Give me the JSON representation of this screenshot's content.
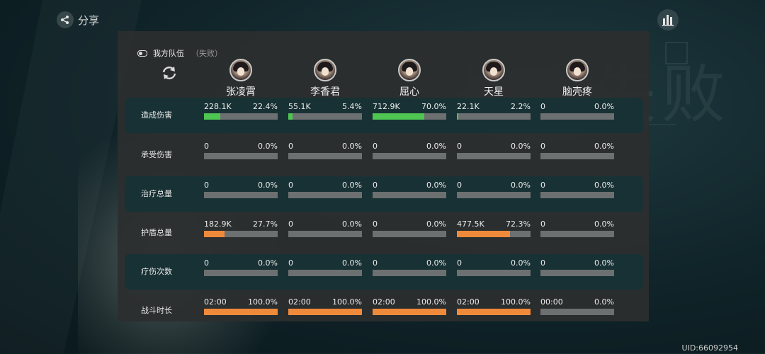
{
  "share": {
    "label": "分享"
  },
  "uid": "UID:66092954",
  "bg_text": "战斗失败",
  "team": {
    "name": "我方队伍",
    "status": "（失败）"
  },
  "members": [
    {
      "name": "张凌霄"
    },
    {
      "name": "李香君"
    },
    {
      "name": "屈心"
    },
    {
      "name": "天星"
    },
    {
      "name": "脑壳疼"
    }
  ],
  "colors": {
    "damage": "#4fc552",
    "orange": "#ef8a3b",
    "bar_bg": "#6d7070",
    "highlight_row": "#183134"
  },
  "rows": [
    {
      "label": "造成伤害",
      "color": "#4fc552",
      "cells": [
        {
          "value": "228.1K",
          "pct": "22.4%",
          "fill": 22.4
        },
        {
          "value": "55.1K",
          "pct": "5.4%",
          "fill": 5.4
        },
        {
          "value": "712.9K",
          "pct": "70.0%",
          "fill": 70.0
        },
        {
          "value": "22.1K",
          "pct": "2.2%",
          "fill": 2.2
        },
        {
          "value": "0",
          "pct": "0.0%",
          "fill": 0
        }
      ]
    },
    {
      "label": "承受伤害",
      "color": "#ef8a3b",
      "cells": [
        {
          "value": "0",
          "pct": "0.0%",
          "fill": 0
        },
        {
          "value": "0",
          "pct": "0.0%",
          "fill": 0
        },
        {
          "value": "0",
          "pct": "0.0%",
          "fill": 0
        },
        {
          "value": "0",
          "pct": "0.0%",
          "fill": 0
        },
        {
          "value": "0",
          "pct": "0.0%",
          "fill": 0
        }
      ]
    },
    {
      "label": "治疗总量",
      "color": "#ef8a3b",
      "cells": [
        {
          "value": "0",
          "pct": "0.0%",
          "fill": 0
        },
        {
          "value": "0",
          "pct": "0.0%",
          "fill": 0
        },
        {
          "value": "0",
          "pct": "0.0%",
          "fill": 0
        },
        {
          "value": "0",
          "pct": "0.0%",
          "fill": 0
        },
        {
          "value": "0",
          "pct": "0.0%",
          "fill": 0
        }
      ]
    },
    {
      "label": "护盾总量",
      "color": "#ef8a3b",
      "cells": [
        {
          "value": "182.9K",
          "pct": "27.7%",
          "fill": 27.7
        },
        {
          "value": "0",
          "pct": "0.0%",
          "fill": 0
        },
        {
          "value": "0",
          "pct": "0.0%",
          "fill": 0
        },
        {
          "value": "477.5K",
          "pct": "72.3%",
          "fill": 72.3
        },
        {
          "value": "0",
          "pct": "0.0%",
          "fill": 0
        }
      ]
    },
    {
      "label": "疗伤次数",
      "color": "#ef8a3b",
      "cells": [
        {
          "value": "0",
          "pct": "0.0%",
          "fill": 0
        },
        {
          "value": "0",
          "pct": "0.0%",
          "fill": 0
        },
        {
          "value": "0",
          "pct": "0.0%",
          "fill": 0
        },
        {
          "value": "0",
          "pct": "0.0%",
          "fill": 0
        },
        {
          "value": "0",
          "pct": "0.0%",
          "fill": 0
        }
      ]
    },
    {
      "label": "战斗时长",
      "color": "#ef8a3b",
      "cells": [
        {
          "value": "02:00",
          "pct": "100.0%",
          "fill": 100
        },
        {
          "value": "02:00",
          "pct": "100.0%",
          "fill": 100
        },
        {
          "value": "02:00",
          "pct": "100.0%",
          "fill": 100
        },
        {
          "value": "02:00",
          "pct": "100.0%",
          "fill": 100
        },
        {
          "value": "00:00",
          "pct": "0.0%",
          "fill": 0
        }
      ]
    }
  ]
}
